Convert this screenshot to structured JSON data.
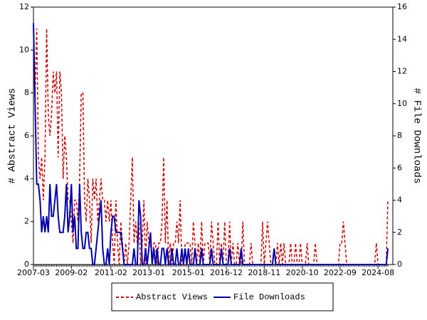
{
  "chart_data": {
    "type": "line",
    "y_label": "# Abstract Views",
    "y2_label": "# File Downloads",
    "x": [
      "2007-03",
      "2007-04",
      "2007-05",
      "2007-06",
      "2007-07",
      "2007-08",
      "2007-09",
      "2007-10",
      "2007-11",
      "2007-12",
      "2008-01",
      "2008-02",
      "2008-03",
      "2008-04",
      "2008-05",
      "2008-06",
      "2008-07",
      "2008-08",
      "2008-09",
      "2008-10",
      "2008-11",
      "2008-12",
      "2009-01",
      "2009-02",
      "2009-03",
      "2009-04",
      "2009-05",
      "2009-06",
      "2009-07",
      "2009-08",
      "2009-09",
      "2009-10",
      "2009-11",
      "2009-12",
      "2010-01",
      "2010-02",
      "2010-03",
      "2010-04",
      "2010-05",
      "2010-06",
      "2010-07",
      "2010-08",
      "2010-09",
      "2010-10",
      "2010-11",
      "2010-12",
      "2011-01",
      "2011-02",
      "2011-03",
      "2011-04",
      "2011-05",
      "2011-06",
      "2011-07",
      "2011-08",
      "2011-09",
      "2011-10",
      "2011-11",
      "2011-12",
      "2012-01",
      "2012-02",
      "2012-03",
      "2012-04",
      "2012-05",
      "2012-06",
      "2012-07",
      "2012-08",
      "2012-09",
      "2012-10",
      "2012-11",
      "2012-12",
      "2013-01",
      "2013-02",
      "2013-03",
      "2013-04",
      "2013-05",
      "2013-06",
      "2013-07",
      "2013-08",
      "2013-09",
      "2013-10",
      "2013-11",
      "2013-12",
      "2014-01",
      "2014-02",
      "2014-03",
      "2014-04",
      "2014-05",
      "2014-06",
      "2014-07",
      "2014-08",
      "2014-09",
      "2014-10",
      "2014-11",
      "2014-12",
      "2015-01",
      "2015-02",
      "2015-03",
      "2015-04",
      "2015-05",
      "2015-06",
      "2015-07",
      "2015-08",
      "2015-09",
      "2015-10",
      "2015-11",
      "2015-12",
      "2016-01",
      "2016-02",
      "2016-03",
      "2016-04",
      "2016-05",
      "2016-06",
      "2016-07",
      "2016-08",
      "2016-09",
      "2016-10",
      "2016-11",
      "2016-12",
      "2017-01",
      "2017-02",
      "2017-03",
      "2017-04",
      "2017-05",
      "2017-06",
      "2017-07",
      "2017-08",
      "2017-09",
      "2017-10",
      "2017-11",
      "2017-12",
      "2018-01",
      "2018-02",
      "2018-03",
      "2018-04",
      "2018-05",
      "2018-06",
      "2018-07",
      "2018-08",
      "2018-09",
      "2018-10",
      "2018-11",
      "2018-12",
      "2019-01",
      "2019-02",
      "2019-03",
      "2019-04",
      "2019-05",
      "2019-06",
      "2019-07",
      "2019-08",
      "2019-09",
      "2019-10",
      "2019-11",
      "2019-12",
      "2020-01",
      "2020-02",
      "2020-03",
      "2020-04",
      "2020-05",
      "2020-06",
      "2020-07",
      "2020-08",
      "2020-09",
      "2020-10",
      "2020-11",
      "2020-12",
      "2021-01",
      "2021-02",
      "2021-03",
      "2021-04",
      "2021-05",
      "2021-06",
      "2021-07",
      "2021-08",
      "2021-09",
      "2021-10",
      "2021-11",
      "2021-12",
      "2022-01",
      "2022-02",
      "2022-03",
      "2022-04",
      "2022-05",
      "2022-06",
      "2022-07",
      "2022-08",
      "2022-09",
      "2022-10",
      "2022-11",
      "2022-12",
      "2023-01",
      "2023-02",
      "2023-03",
      "2023-04",
      "2023-05",
      "2023-06",
      "2023-07",
      "2023-08",
      "2023-09",
      "2023-10",
      "2023-11",
      "2023-12",
      "2024-01",
      "2024-02",
      "2024-03",
      "2024-04",
      "2024-05",
      "2024-06",
      "2024-07",
      "2024-08",
      "2024-09",
      "2024-10",
      "2024-11",
      "2024-12",
      "2025-01",
      "2025-02"
    ],
    "series": [
      {
        "name": "Abstract Views",
        "color": "#cc0000",
        "dash": true,
        "values": [
          9,
          8,
          11,
          5,
          4,
          5,
          3,
          5,
          11,
          7,
          6,
          7,
          9,
          8,
          9,
          5,
          9,
          8,
          4,
          6,
          5,
          3,
          3,
          2,
          1,
          3,
          3,
          2,
          4,
          8,
          8,
          3,
          2,
          4,
          3,
          1,
          4,
          3,
          4,
          2,
          3,
          4,
          3,
          3,
          2,
          3,
          2,
          3,
          1,
          0,
          3,
          1,
          0,
          2,
          1,
          0,
          1,
          0,
          1,
          3,
          5,
          1,
          2,
          1,
          2,
          0,
          1,
          3,
          0,
          2,
          1,
          1,
          0,
          1,
          1,
          0,
          1,
          1,
          2,
          5,
          1,
          3,
          0,
          1,
          0,
          1,
          1,
          2,
          1,
          3,
          0,
          0,
          1,
          1,
          1,
          1,
          0,
          2,
          1,
          0,
          1,
          0,
          2,
          0,
          1,
          1,
          1,
          0,
          2,
          1,
          0,
          0,
          2,
          0,
          1,
          0,
          2,
          0,
          0,
          2,
          0,
          1,
          0,
          0,
          1,
          0,
          0,
          2,
          0,
          0,
          0,
          0,
          1,
          0,
          0,
          0,
          0,
          0,
          0,
          2,
          0,
          1,
          2,
          1,
          0,
          0,
          0,
          0,
          1,
          0,
          1,
          0,
          1,
          0,
          0,
          0,
          1,
          0,
          0,
          1,
          0,
          0,
          1,
          0,
          0,
          0,
          1,
          0,
          0,
          0,
          0,
          1,
          0,
          0,
          0,
          0,
          0,
          0,
          0,
          0,
          0,
          0,
          0,
          0,
          0,
          0,
          1,
          1,
          2,
          1,
          0,
          0,
          0,
          0,
          0,
          0,
          0,
          0,
          0,
          0,
          0,
          0,
          0,
          0,
          0,
          0,
          0,
          0,
          1,
          0,
          0,
          0,
          0,
          0,
          0,
          3
        ]
      },
      {
        "name": "File Downloads",
        "color": "#0000aa",
        "axis": "y2",
        "values": [
          15,
          10,
          5,
          5,
          4,
          2,
          3,
          2,
          3,
          2,
          5,
          3,
          3,
          4,
          5,
          3,
          2,
          2,
          2,
          3,
          5,
          2,
          3,
          5,
          2,
          3,
          1,
          1,
          5,
          2,
          1,
          1,
          2,
          2,
          1,
          1,
          0,
          0,
          1,
          2,
          3,
          4,
          1,
          0,
          0,
          1,
          0,
          2,
          3,
          3,
          2,
          2,
          2,
          2,
          1,
          0,
          0,
          0,
          0,
          0,
          0,
          1,
          0,
          0,
          4,
          3,
          0,
          0,
          1,
          0,
          1,
          2,
          0,
          1,
          0,
          1,
          0,
          0,
          1,
          1,
          0,
          1,
          0,
          0,
          1,
          0,
          0,
          1,
          0,
          0,
          1,
          0,
          1,
          0,
          1,
          0,
          0,
          0,
          1,
          0,
          0,
          0,
          1,
          0,
          0,
          0,
          0,
          0,
          1,
          0,
          0,
          0,
          0,
          0,
          1,
          0,
          0,
          0,
          0,
          1,
          0,
          0,
          0,
          0,
          0,
          0,
          1,
          0,
          0,
          0,
          0,
          0,
          0,
          0,
          0,
          0,
          0,
          0,
          0,
          0,
          0,
          0,
          0,
          0,
          0,
          0,
          1,
          0,
          0,
          0,
          0,
          0,
          0,
          0,
          0,
          0,
          0,
          0,
          0,
          0,
          0,
          0,
          0,
          0,
          0,
          0,
          0,
          0,
          0,
          0,
          0,
          0,
          0,
          0,
          0,
          0,
          0,
          0,
          0,
          0,
          0,
          0,
          0,
          0,
          0,
          0,
          0,
          0,
          0,
          0,
          0,
          0,
          0,
          0,
          0,
          0,
          0,
          0,
          0,
          0,
          0,
          0,
          0,
          0,
          0,
          0,
          0,
          0,
          0,
          0,
          0,
          0,
          0,
          0,
          0,
          1
        ]
      }
    ],
    "xlim": [
      "2007-03",
      "2025-05"
    ],
    "xticks": [
      "2007-03",
      "2009-02",
      "2011-02",
      "2013-01",
      "2015-01",
      "2016-12",
      "2018-11",
      "2020-10",
      "2022-09",
      "2024-08"
    ],
    "ylim": [
      0,
      12
    ],
    "yticks": [
      0,
      2,
      4,
      6,
      8,
      10,
      12
    ],
    "y2lim": [
      0,
      16
    ],
    "y2ticks": [
      0,
      2,
      4,
      6,
      8,
      10,
      12,
      14,
      16
    ],
    "legend": "bottom"
  }
}
